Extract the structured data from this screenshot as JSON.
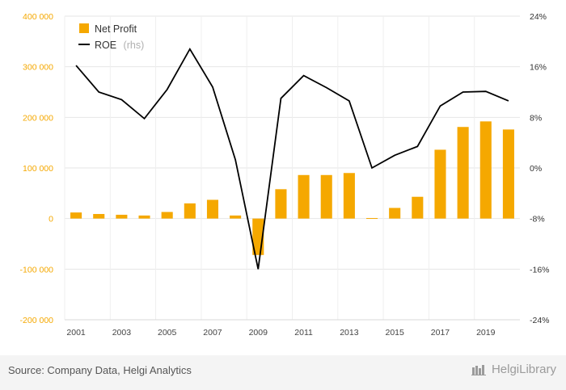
{
  "chart_data": {
    "type": "bar+line",
    "x": [
      2001,
      2002,
      2003,
      2004,
      2005,
      2006,
      2007,
      2008,
      2009,
      2010,
      2011,
      2012,
      2013,
      2014,
      2015,
      2016,
      2017,
      2018,
      2019,
      2020
    ],
    "x_tick_labels": [
      "2001",
      "2003",
      "2005",
      "2007",
      "2009",
      "2011",
      "2013",
      "2015",
      "2017",
      "2019"
    ],
    "series": [
      {
        "name": "Net Profit",
        "type": "bar",
        "axis": "left",
        "color": "#f5a800",
        "values": [
          12000,
          9000,
          7500,
          6000,
          13000,
          30000,
          37000,
          6000,
          -72000,
          58000,
          86000,
          86000,
          90000,
          1000,
          21000,
          43000,
          136000,
          181000,
          192000,
          176000
        ]
      },
      {
        "name": "ROE",
        "name_note": "(rhs)",
        "type": "line",
        "axis": "right",
        "color": "#000000",
        "values": [
          16.2,
          12.0,
          10.8,
          7.8,
          12.4,
          18.8,
          12.8,
          1.3,
          -16.0,
          11.0,
          14.6,
          12.7,
          10.6,
          0.0,
          2.0,
          3.4,
          9.8,
          12.0,
          12.1,
          10.6
        ]
      }
    ],
    "y_left": {
      "ylim": [
        -200000,
        400000
      ],
      "tick_values": [
        -200000,
        -100000,
        0,
        100000,
        200000,
        300000,
        400000
      ],
      "tick_labels": [
        "-200 000",
        "-100 000",
        "0",
        "100 000",
        "200 000",
        "300 000",
        "400 000"
      ]
    },
    "y_right": {
      "ylim": [
        -24,
        24
      ],
      "tick_values": [
        -24,
        -16,
        -8,
        0,
        8,
        16,
        24
      ],
      "tick_labels": [
        "-24%",
        "-16%",
        "-8%",
        "0%",
        "8%",
        "16%",
        "24%"
      ]
    },
    "grid": true,
    "legend_position": "top-left"
  },
  "footer": {
    "source": "Source: Company Data, Helgi Analytics",
    "brand": "HelgiLibrary"
  }
}
